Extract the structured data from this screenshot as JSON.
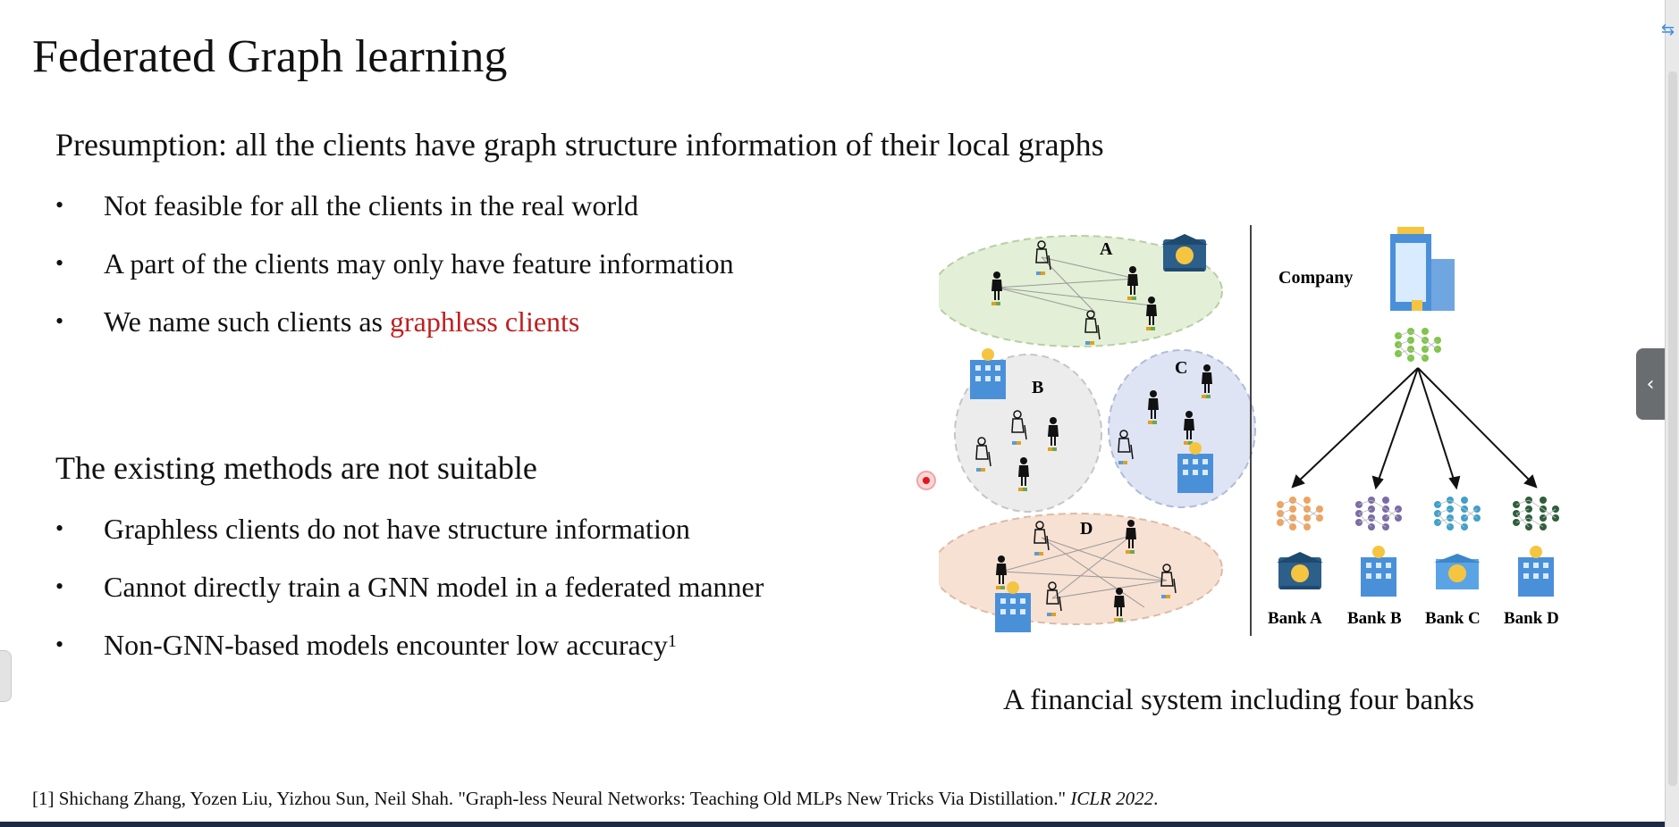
{
  "slide": {
    "title": "Federated Graph learning",
    "presumption": {
      "heading": "Presumption: all the clients have graph structure information of their local graphs",
      "bullets": [
        {
          "text": "Not feasible for all the clients in the real world"
        },
        {
          "text": "A part of the clients may only have feature information"
        },
        {
          "text": "We name such clients as ",
          "highlight": "graphless clients"
        }
      ]
    },
    "existing": {
      "heading": "The existing methods are not suitable",
      "bullets": [
        {
          "text": "Graphless clients do not have structure information"
        },
        {
          "text": "Cannot directly train a GNN model in a federated manner"
        },
        {
          "text": "Non-GNN-based models encounter low accuracy",
          "sup": "1"
        }
      ]
    },
    "figure": {
      "client_labels": [
        "A",
        "B",
        "C",
        "D"
      ],
      "company_label": "Company",
      "bank_labels": [
        "Bank A",
        "Bank B",
        "Bank C",
        "Bank D"
      ],
      "caption": "A financial system including four banks"
    },
    "reference": {
      "text": "[1] Shichang Zhang, Yozen Liu, Yizhou Sun, Neil Shah. \"Graph-less Neural Networks: Teaching Old MLPs New Tricks Via Distillation.\" ",
      "venue": "ICLR 2022",
      "end": "."
    }
  },
  "ui": {
    "bullet_glyph": "•",
    "side_toggle_glyph": "‹",
    "corner_icon_glyph": "⇆"
  },
  "colors": {
    "highlight_red": "#c01f1f",
    "client_a_fill": "#e3efd6",
    "client_b_fill": "#ececec",
    "client_c_fill": "#dfe4f4",
    "client_d_fill": "#f7e1d3"
  }
}
